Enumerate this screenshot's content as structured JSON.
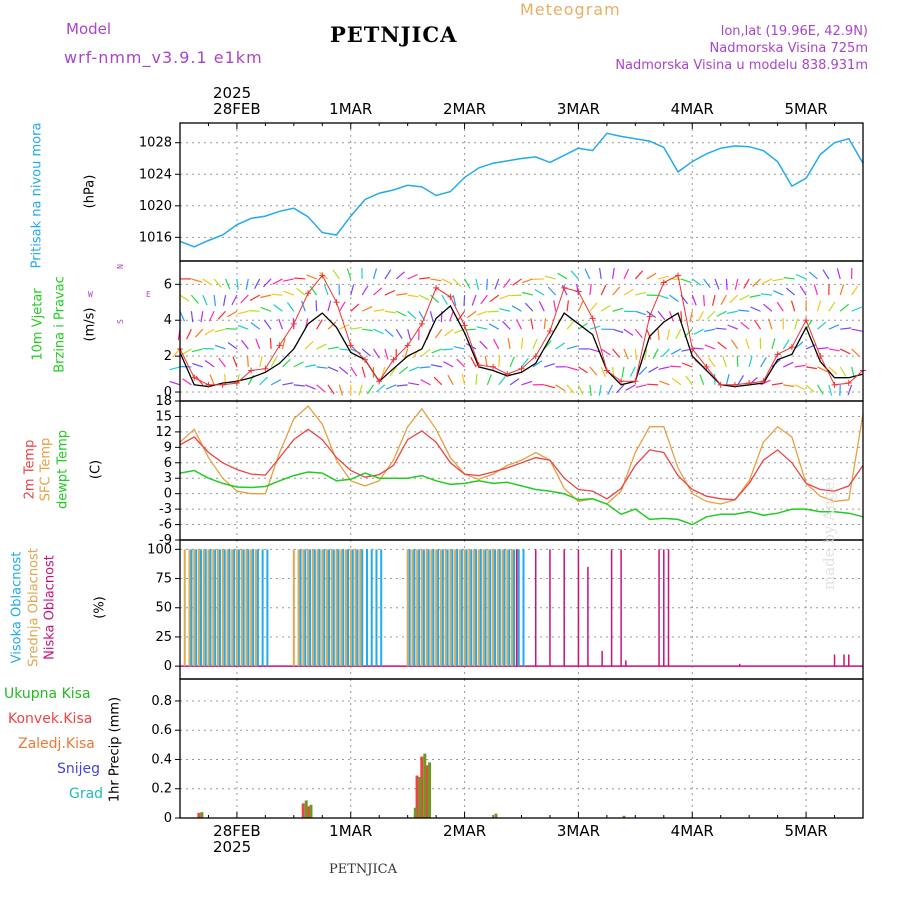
{
  "header": {
    "model_label": "Model",
    "model_name": "wrf-nmm_v3.9.1 e1km",
    "station": "PETNJICA",
    "meteogram": "Meteogram",
    "lonlat": "lon,lat (19.96E, 42.9N)",
    "altitude": "Nadmorska Visina 725m",
    "model_altitude": "Nadmorska Visina u modelu 838.931m",
    "footer_station": "PETNJICA",
    "watermark": "made by Angel",
    "year_label": "2025"
  },
  "colors": {
    "pressure": "#22aaee",
    "temp2m": "#ee4444",
    "sfc_temp": "#e8a040",
    "dewpoint": "#22cc22",
    "wind_speed": "#000000",
    "wind_gust": "#ee3333",
    "high_cloud": "#22aaee",
    "mid_cloud": "#e0a850",
    "low_cloud": "#cc1177",
    "model_text": "#aa44cc",
    "meteogram_text": "#e8b060"
  },
  "time_axis": {
    "start": "2025-02-27T12:00",
    "end": "2025-03-05T12:00",
    "ticks": [
      "28FEB",
      "1MAR",
      "2MAR",
      "3MAR",
      "4MAR",
      "5MAR"
    ]
  },
  "panels": {
    "pressure": {
      "label": "Pritisak na nivou mora",
      "unit": "(hPa)",
      "ticks": [
        "1016",
        "1020",
        "1024",
        "1028"
      ]
    },
    "wind": {
      "label_line1": "10m Vjetar",
      "label_line2": "Brzina i Pravac",
      "unit": "(m/s)",
      "ticks": [
        "0",
        "2",
        "4",
        "6"
      ],
      "compass_w": "W",
      "compass_e": "E",
      "compass_n": "N",
      "compass_s": "S"
    },
    "temperature": {
      "label_2m": "2m Temp",
      "label_sfc": "SFC Temp",
      "label_dew": "dewpt Temp",
      "unit": "(C)",
      "ticks": [
        "18",
        "15",
        "12",
        "9",
        "6",
        "3",
        "0",
        "-3",
        "-6",
        "-9"
      ]
    },
    "cloud": {
      "label_high": "Visoka Oblacnost",
      "label_mid": "Srednja Oblacnost",
      "label_low": "Niska Oblacnost",
      "unit": "(%)",
      "ticks": [
        "0",
        "25",
        "50",
        "75",
        "100"
      ]
    },
    "precip": {
      "label_total": "Ukupna Kisa",
      "label_conv": "Konvek.Kisa",
      "label_frz": "Zaledj.Kisa",
      "label_snow": "Snijeg",
      "label_hail": "Grad",
      "unit": "1hr Precip (mm)",
      "ticks": [
        "0",
        "0.2",
        "0.4",
        "0.6",
        "0.8"
      ],
      "colors": [
        "#22bb22",
        "#ee4444",
        "#ee7733",
        "#4444dd",
        "#22bbbb"
      ]
    }
  },
  "chart_data": [
    {
      "type": "line",
      "title": "Pritisak na nivou mora",
      "ylabel": "(hPa)",
      "ylim": [
        1013,
        1030.5
      ],
      "x_hours": [
        0,
        3,
        6,
        9,
        12,
        15,
        18,
        21,
        24,
        27,
        30,
        33,
        36,
        39,
        42,
        45,
        48,
        51,
        54,
        57,
        60,
        63,
        66,
        69,
        72,
        75,
        78,
        81,
        84,
        87,
        90,
        93,
        96,
        99,
        102,
        105,
        108,
        111,
        114,
        117,
        120,
        123,
        126,
        129,
        132,
        135,
        138,
        141,
        144
      ],
      "series": [
        {
          "values": [
            1015.5,
            1014.8,
            1015.6,
            1016.3,
            1017.6,
            1018.4,
            1018.7,
            1019.3,
            1019.7,
            1018.6,
            1016.6,
            1016.3,
            1018.7,
            1020.8,
            1021.6,
            1022.0,
            1022.6,
            1022.4,
            1021.3,
            1021.8,
            1023.6,
            1024.8,
            1025.4,
            1025.7,
            1026.0,
            1026.2,
            1025.5,
            1026.4,
            1027.3,
            1027.0,
            1029.2,
            1028.8,
            1028.5,
            1028.2,
            1027.4,
            1024.3,
            1025.6,
            1026.6,
            1027.3,
            1027.6,
            1027.5,
            1027.0,
            1025.6,
            1022.5,
            1023.5,
            1026.5,
            1028.0,
            1028.5,
            1025.4
          ]
        }
      ]
    },
    {
      "type": "line",
      "title": "10m Vjetar Brzina i Pravac",
      "ylabel": "(m/s)",
      "ylim": [
        -0.5,
        7.3
      ],
      "x_hours": [
        0,
        3,
        6,
        9,
        12,
        15,
        18,
        21,
        24,
        27,
        30,
        33,
        36,
        39,
        42,
        45,
        48,
        51,
        54,
        57,
        60,
        63,
        66,
        69,
        72,
        75,
        78,
        81,
        84,
        87,
        90,
        93,
        96,
        99,
        102,
        105,
        108,
        111,
        114,
        117,
        120,
        123,
        126,
        129,
        132,
        135,
        138,
        141,
        144
      ],
      "series": [
        {
          "name": "speed",
          "values": [
            2.2,
            0.4,
            0.3,
            0.5,
            0.6,
            0.8,
            1.1,
            1.6,
            2.4,
            3.8,
            4.4,
            3.6,
            2.2,
            1.8,
            0.6,
            1.3,
            2.0,
            2.4,
            4.1,
            4.8,
            3.3,
            1.4,
            1.2,
            0.9,
            1.1,
            1.6,
            3.0,
            4.4,
            3.8,
            3.2,
            1.2,
            0.4,
            0.6,
            3.1,
            3.9,
            4.4,
            2.0,
            1.2,
            0.4,
            0.3,
            0.4,
            0.5,
            1.8,
            2.1,
            3.6,
            1.7,
            0.8,
            0.8,
            1.0
          ]
        },
        {
          "name": "gust",
          "values": [
            2.4,
            0.8,
            0.4,
            0.4,
            0.5,
            1.2,
            1.3,
            2.6,
            3.8,
            5.5,
            6.5,
            5.0,
            2.6,
            1.8,
            0.6,
            1.8,
            2.6,
            3.8,
            5.8,
            5.3,
            3.7,
            1.5,
            1.4,
            1.0,
            1.3,
            2.0,
            3.4,
            5.8,
            5.6,
            4.1,
            1.2,
            0.6,
            0.6,
            4.2,
            6.1,
            6.5,
            2.4,
            1.4,
            0.4,
            0.4,
            0.5,
            0.6,
            2.1,
            2.5,
            4.0,
            2.0,
            0.4,
            0.5,
            1.2
          ]
        }
      ]
    },
    {
      "type": "line",
      "title": "Temperatura",
      "ylabel": "(C)",
      "ylim": [
        -9,
        18
      ],
      "x_hours": [
        0,
        3,
        6,
        9,
        12,
        15,
        18,
        21,
        24,
        27,
        30,
        33,
        36,
        39,
        42,
        45,
        48,
        51,
        54,
        57,
        60,
        63,
        66,
        69,
        72,
        75,
        78,
        81,
        84,
        87,
        90,
        93,
        96,
        99,
        102,
        105,
        108,
        111,
        114,
        117,
        120,
        123,
        126,
        129,
        132,
        135,
        138,
        141,
        144
      ],
      "series": [
        {
          "name": "2m Temp",
          "values": [
            9.5,
            11.0,
            8.0,
            6.0,
            4.7,
            3.8,
            3.6,
            7.0,
            10.5,
            12.5,
            10.5,
            7.0,
            4.5,
            3.2,
            3.7,
            5.5,
            10.5,
            12.2,
            10.0,
            6.0,
            3.8,
            3.5,
            4.2,
            5.0,
            6.0,
            7.0,
            6.5,
            3.0,
            0.8,
            0.5,
            -1.0,
            1.0,
            5.5,
            8.5,
            8.0,
            3.5,
            0.8,
            -0.5,
            -1.0,
            -1.2,
            2.0,
            6.5,
            8.5,
            6.0,
            2.0,
            0.8,
            0.5,
            1.5,
            5.5
          ]
        },
        {
          "name": "SFC Temp",
          "values": [
            10.0,
            12.5,
            7.0,
            3.0,
            0.5,
            0.0,
            0.0,
            8.0,
            14.5,
            17.0,
            13.5,
            6.5,
            2.5,
            1.5,
            2.5,
            6.5,
            13.0,
            16.5,
            12.5,
            7.0,
            3.8,
            2.8,
            3.8,
            5.5,
            6.5,
            8.0,
            6.5,
            1.0,
            -1.5,
            -1.0,
            -2.0,
            0.5,
            8.0,
            13.0,
            13.0,
            5.0,
            0.0,
            -1.5,
            -2.0,
            -1.2,
            2.5,
            10.0,
            13.0,
            11.0,
            2.0,
            -0.5,
            -1.5,
            -1.2,
            15.5
          ]
        },
        {
          "name": "dewpt Temp",
          "values": [
            4.0,
            4.5,
            3.0,
            2.0,
            1.3,
            1.2,
            1.4,
            2.5,
            3.5,
            4.2,
            4.0,
            2.5,
            2.8,
            4.0,
            3.0,
            3.0,
            3.0,
            3.5,
            2.5,
            1.8,
            2.0,
            2.5,
            2.0,
            2.2,
            1.5,
            0.8,
            0.5,
            0.0,
            -1.2,
            -1.0,
            -2.0,
            -4.0,
            -3.0,
            -5.0,
            -4.8,
            -5.0,
            -6.0,
            -4.5,
            -4.0,
            -4.0,
            -3.5,
            -4.2,
            -3.8,
            -3.0,
            -3.0,
            -3.5,
            -3.5,
            -3.8,
            -4.5
          ]
        }
      ]
    },
    {
      "type": "bar",
      "title": "Oblacnost",
      "ylabel": "(%)",
      "ylim": [
        0,
        100
      ],
      "series": [
        {
          "name": "Visoka Oblacnost",
          "segments": [
            [
              2,
              18
            ],
            [
              25,
              42
            ],
            [
              48,
              72
            ]
          ],
          "value": 100
        },
        {
          "name": "Srednja Oblacnost",
          "segments": [
            [
              1,
              16
            ],
            [
              24,
              38
            ],
            [
              48,
              71
            ]
          ],
          "value": 100
        },
        {
          "name": "Niska Oblacnost",
          "x_hours": [
            71,
            75,
            78,
            81,
            84,
            86,
            89,
            91,
            93,
            94,
            101,
            102,
            103,
            118,
            138,
            140,
            141
          ],
          "values": [
            100,
            100,
            100,
            100,
            100,
            85,
            13,
            100,
            100,
            5,
            100,
            100,
            100,
            2,
            10,
            10,
            10
          ]
        }
      ]
    },
    {
      "type": "bar",
      "title": "1hr Precip",
      "ylabel": "(mm)",
      "ylim": [
        0,
        0.95
      ],
      "series": [
        {
          "name": "Ukupna Kisa",
          "x_hours": [
            4,
            26,
            27,
            49,
            50,
            51,
            52,
            66,
            93
          ],
          "values": [
            0.04,
            0.12,
            0.09,
            0.07,
            0.28,
            0.44,
            0.38,
            0.03,
            0.015
          ]
        },
        {
          "name": "Konvek.Kisa",
          "x_hours": [
            4,
            26,
            27,
            50,
            51,
            52
          ],
          "values": [
            0.035,
            0.1,
            0.08,
            0.29,
            0.42,
            0.36
          ]
        },
        {
          "name": "Zaledj.Kisa",
          "x_hours": [],
          "values": []
        },
        {
          "name": "Snijeg",
          "x_hours": [],
          "values": []
        },
        {
          "name": "Grad",
          "x_hours": [],
          "values": []
        }
      ]
    }
  ]
}
